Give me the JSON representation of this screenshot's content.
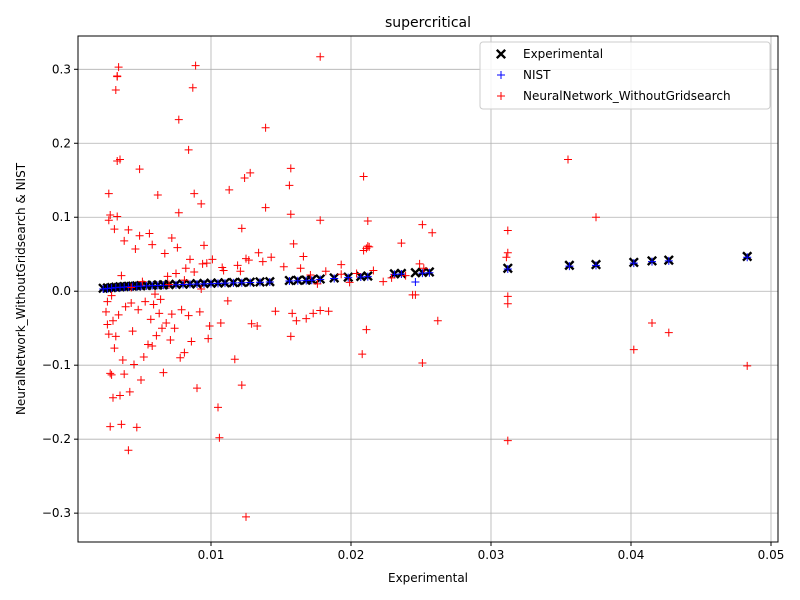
{
  "chart_data": {
    "type": "scatter",
    "title": "supercritical",
    "xlabel": "Experimental",
    "ylabel": "NeuralNetwork_WithoutGridsearch & NIST",
    "xlim": [
      0.0005,
      0.0505
    ],
    "ylim": [
      -0.339,
      0.345
    ],
    "xticks": [
      0.01,
      0.02,
      0.03,
      0.04,
      0.05
    ],
    "xtick_labels": [
      "0.01",
      "0.02",
      "0.03",
      "0.04",
      "0.05"
    ],
    "yticks": [
      -0.3,
      -0.2,
      -0.1,
      0.0,
      0.1,
      0.2,
      0.3
    ],
    "ytick_labels": [
      "−0.3",
      "−0.2",
      "−0.1",
      "0.0",
      "0.1",
      "0.2",
      "0.3"
    ],
    "grid": true,
    "legend_position": "upper-right",
    "series": [
      {
        "name": "Experimental",
        "marker": "x",
        "color": "#000000",
        "x": [
          0.0023,
          0.0026,
          0.0029,
          0.0032,
          0.0035,
          0.0038,
          0.0041,
          0.0044,
          0.0047,
          0.005,
          0.0054,
          0.0058,
          0.0062,
          0.0066,
          0.007,
          0.0075,
          0.008,
          0.0085,
          0.009,
          0.0095,
          0.01,
          0.0105,
          0.011,
          0.0116,
          0.0122,
          0.0128,
          0.0135,
          0.0142,
          0.0156,
          0.0162,
          0.0168,
          0.0172,
          0.0178,
          0.0188,
          0.0198,
          0.0207,
          0.0212,
          0.0231,
          0.0236,
          0.0246,
          0.0251,
          0.0256,
          0.0312,
          0.0356,
          0.0375,
          0.0402,
          0.0415,
          0.0427,
          0.0483
        ],
        "y": [
          0.004,
          0.0045,
          0.005,
          0.0055,
          0.006,
          0.0063,
          0.0066,
          0.0069,
          0.0072,
          0.0075,
          0.0078,
          0.0081,
          0.0084,
          0.0087,
          0.009,
          0.0093,
          0.0096,
          0.0099,
          0.0102,
          0.0105,
          0.0108,
          0.0111,
          0.0114,
          0.0117,
          0.012,
          0.0123,
          0.0126,
          0.0129,
          0.0145,
          0.0148,
          0.0151,
          0.0154,
          0.0165,
          0.018,
          0.019,
          0.02,
          0.0205,
          0.0235,
          0.024,
          0.025,
          0.0255,
          0.026,
          0.031,
          0.035,
          0.036,
          0.039,
          0.041,
          0.042,
          0.047
        ]
      },
      {
        "name": "NIST",
        "marker": "+",
        "color": "#0000ff",
        "x": [
          0.0023,
          0.0026,
          0.0029,
          0.0032,
          0.0035,
          0.0038,
          0.0041,
          0.0044,
          0.0047,
          0.005,
          0.0054,
          0.0058,
          0.0062,
          0.0066,
          0.007,
          0.0075,
          0.008,
          0.0085,
          0.009,
          0.0095,
          0.01,
          0.0105,
          0.011,
          0.0116,
          0.0122,
          0.0128,
          0.0135,
          0.0142,
          0.0156,
          0.0162,
          0.0168,
          0.0172,
          0.0178,
          0.0188,
          0.0198,
          0.0207,
          0.0212,
          0.0231,
          0.0236,
          0.0246,
          0.0251,
          0.0256,
          0.0312,
          0.0356,
          0.0375,
          0.0402,
          0.0415,
          0.0427,
          0.0483
        ],
        "y": [
          0.003,
          0.0037,
          0.0042,
          0.0048,
          0.0052,
          0.0056,
          0.006,
          0.0063,
          0.0066,
          0.0069,
          0.0072,
          0.0075,
          0.0078,
          0.0081,
          0.0084,
          0.0088,
          0.0091,
          0.0094,
          0.0097,
          0.01,
          0.0103,
          0.0106,
          0.0109,
          0.0112,
          0.0115,
          0.0118,
          0.0121,
          0.0124,
          0.0138,
          0.0141,
          0.0144,
          0.0148,
          0.0158,
          0.0172,
          0.0183,
          0.0193,
          0.0198,
          0.0228,
          0.0233,
          0.0125,
          0.0245,
          0.025,
          0.03,
          0.034,
          0.035,
          0.038,
          0.04,
          0.041,
          0.046
        ]
      },
      {
        "name": "NeuralNetwork_WithoutGridsearch",
        "marker": "+",
        "color": "#ff0000",
        "x": [
          0.0033,
          0.0034,
          0.0032,
          0.0089,
          0.0178,
          0.0087,
          0.0077,
          0.0033,
          0.0139,
          0.0084,
          0.0035,
          0.0033,
          0.0049,
          0.0157,
          0.0128,
          0.0124,
          0.0156,
          0.0088,
          0.0113,
          0.0062,
          0.0093,
          0.0077,
          0.0139,
          0.0028,
          0.0122,
          0.0209,
          0.0157,
          0.0166,
          0.0178,
          0.0027,
          0.0212,
          0.0355,
          0.0375,
          0.0312,
          0.0312,
          0.0311,
          0.0236,
          0.0251,
          0.0258,
          0.0209,
          0.0211,
          0.0213,
          0.0212,
          0.0312,
          0.0312,
          0.0312,
          0.0415,
          0.0402,
          0.0427,
          0.0483,
          0.0251,
          0.0211,
          0.0208,
          0.0178,
          0.0168,
          0.0157,
          0.0122,
          0.0125,
          0.0105,
          0.0106,
          0.009,
          0.0081,
          0.0078,
          0.0071,
          0.0066,
          0.0058,
          0.0047,
          0.0041,
          0.0035,
          0.0028,
          0.0028,
          0.003,
          0.0042,
          0.005,
          0.0045,
          0.0052,
          0.0036,
          0.0038,
          0.0029,
          0.0031,
          0.0055,
          0.0061,
          0.0065,
          0.0068,
          0.0072,
          0.0079,
          0.0084,
          0.0092,
          0.0098,
          0.0107,
          0.0117,
          0.0133,
          0.0146,
          0.0161,
          0.0173,
          0.0184,
          0.0199,
          0.0223,
          0.0244,
          0.0249,
          0.0262,
          0.0246,
          0.0158,
          0.0129,
          0.0112,
          0.0099,
          0.0086,
          0.0074,
          0.0063,
          0.0057,
          0.0044,
          0.0037,
          0.0032,
          0.0026,
          0.0025,
          0.0027,
          0.003,
          0.0034,
          0.0039,
          0.0043,
          0.0048,
          0.0053,
          0.0059,
          0.0064,
          0.0069,
          0.0075,
          0.0082,
          0.0088,
          0.0094,
          0.0101,
          0.0109,
          0.0119,
          0.0127,
          0.0137,
          0.0143,
          0.0152,
          0.0164,
          0.0171,
          0.0182,
          0.0193,
          0.0204,
          0.0216,
          0.0229,
          0.0239,
          0.0252,
          0.0125,
          0.0095,
          0.0072,
          0.0056,
          0.0046,
          0.0038,
          0.0031,
          0.0027,
          0.0033,
          0.0041,
          0.0049,
          0.0058,
          0.0067,
          0.0076,
          0.0085,
          0.0097,
          0.0108,
          0.0121,
          0.0134,
          0.0159,
          0.0176,
          0.0193,
          0.0026,
          0.0029,
          0.0036,
          0.0043,
          0.0051,
          0.006,
          0.007,
          0.0081,
          0.0093
        ],
        "y": [
          0.29,
          0.303,
          0.272,
          0.305,
          0.317,
          0.275,
          0.232,
          0.291,
          0.221,
          0.191,
          0.178,
          0.176,
          0.165,
          0.166,
          0.16,
          0.153,
          0.143,
          0.132,
          0.137,
          0.13,
          0.118,
          0.106,
          0.113,
          0.103,
          0.085,
          0.155,
          0.104,
          0.047,
          0.096,
          0.132,
          0.095,
          0.178,
          0.1,
          0.082,
          0.052,
          0.046,
          0.065,
          0.09,
          0.079,
          0.055,
          0.058,
          0.06,
          0.061,
          -0.007,
          -0.017,
          -0.202,
          -0.043,
          -0.079,
          -0.056,
          -0.101,
          -0.097,
          -0.052,
          -0.085,
          -0.026,
          -0.037,
          -0.061,
          -0.127,
          -0.305,
          -0.157,
          -0.198,
          -0.131,
          -0.083,
          -0.09,
          -0.066,
          -0.11,
          -0.074,
          -0.184,
          -0.215,
          -0.141,
          -0.183,
          -0.111,
          -0.144,
          -0.136,
          -0.12,
          -0.099,
          -0.089,
          -0.18,
          -0.112,
          -0.113,
          -0.077,
          -0.072,
          -0.06,
          -0.05,
          -0.043,
          -0.031,
          -0.025,
          -0.033,
          -0.028,
          -0.064,
          -0.043,
          -0.092,
          -0.047,
          -0.027,
          -0.04,
          -0.03,
          -0.027,
          0.012,
          0.013,
          -0.005,
          0.037,
          -0.04,
          -0.005,
          -0.03,
          -0.044,
          -0.013,
          -0.047,
          -0.068,
          -0.05,
          -0.03,
          -0.038,
          -0.054,
          -0.093,
          -0.061,
          -0.045,
          -0.028,
          -0.058,
          -0.04,
          -0.032,
          -0.021,
          -0.016,
          -0.025,
          -0.014,
          -0.018,
          -0.011,
          0.02,
          0.024,
          0.031,
          0.026,
          0.037,
          0.043,
          0.028,
          0.035,
          0.042,
          0.04,
          0.046,
          0.033,
          0.031,
          0.022,
          0.027,
          0.036,
          0.024,
          0.028,
          0.018,
          0.021,
          0.031,
          0.044,
          0.062,
          0.072,
          0.078,
          0.057,
          0.068,
          0.084,
          0.096,
          0.101,
          0.083,
          0.075,
          0.063,
          0.051,
          0.059,
          0.043,
          0.038,
          0.032,
          0.027,
          0.052,
          0.064,
          0.01,
          0.023,
          -0.014,
          -0.006,
          0.021,
          0.005,
          0.013,
          -0.004,
          0.009,
          0.015,
          0.003
        ]
      }
    ]
  }
}
